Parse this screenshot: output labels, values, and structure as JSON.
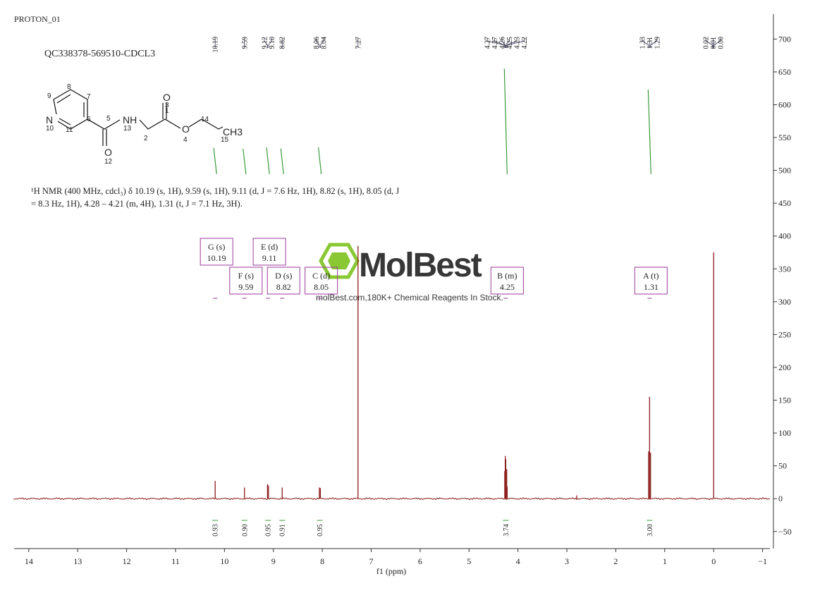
{
  "chart_data": {
    "type": "nmr",
    "title": "PROTON_01",
    "sample": "QC338378-569510-CDCL3",
    "description": [
      "¹H NMR (400 MHz, cdcl₃) δ 10.19 (s, 1H), 9.59 (s, 1H), 9.11 (d, J = 7.6 Hz, 1H), 8.82 (s, 1H), 8.05 (d, J",
      "= 8.3 Hz, 1H), 4.28 – 4.21 (m, 4H), 1.31 (t, J = 7.1 Hz, 3H)."
    ],
    "structure": {
      "atoms": [
        "N",
        "NH",
        "O",
        "O",
        "O",
        "CH3"
      ],
      "numbers": [
        "1",
        "2",
        "3",
        "4",
        "5",
        "6",
        "7",
        "8",
        "9",
        "10",
        "11",
        "12",
        "13",
        "14",
        "15"
      ]
    },
    "watermark": {
      "brand": "MolBest",
      "tagline": "molBest.com,180K+ Chemical Reagents In Stock."
    },
    "xlabel": "f1 (ppm)",
    "xlim": [
      14.3,
      -1.15
    ],
    "xticks": [
      14,
      13,
      12,
      11,
      10,
      9,
      8,
      7,
      6,
      5,
      4,
      3,
      2,
      1,
      0,
      {
        "value": -1,
        "label": "−1"
      }
    ],
    "ylim": [
      -76,
      738
    ],
    "yticks": [
      {
        "value": -50,
        "label": "−50"
      },
      0,
      50,
      100,
      150,
      200,
      250,
      300,
      350,
      400,
      450,
      500,
      550,
      600,
      650,
      700
    ],
    "color": "#8b1a1a",
    "x": [
      10.19,
      9.59,
      9.12,
      9.1,
      8.82,
      8.06,
      8.04,
      7.27,
      4.27,
      4.26,
      4.25,
      4.23,
      4.22,
      2.8,
      1.33,
      1.31,
      1.29,
      0
    ],
    "values": [
      27,
      17,
      22,
      20,
      17,
      17,
      16,
      385,
      42,
      65,
      60,
      45,
      18,
      5,
      72,
      155,
      70,
      375
    ],
    "peak_labels": [
      10.19,
      9.59,
      9.12,
      {
        "value": 9.1,
        "label": "9.10"
      },
      8.82,
      8.06,
      8.04,
      7.27,
      4.27,
      4.27,
      4.26,
      4.25,
      4.23,
      4.22,
      1.33,
      1.31,
      1.29,
      0.02,
      0.01,
      {
        "value": 0,
        "label": "0.00"
      }
    ],
    "multiplets": [
      {
        "label": "G (s)",
        "shift": 10.19,
        "integral": 0.93
      },
      {
        "label": "F (s)",
        "shift": 9.59,
        "integral": {
          "value": 0.9,
          "label": "0.90"
        }
      },
      {
        "label": "E (d)",
        "shift": 9.11,
        "integral": 0.95
      },
      {
        "label": "D (s)",
        "shift": 8.82,
        "integral": 0.91
      },
      {
        "label": "C (d)",
        "shift": 8.05,
        "integral": 0.95
      },
      {
        "label": "B (m)",
        "shift": 4.25,
        "integral": 3.74
      },
      {
        "label": "A (t)",
        "shift": 1.31,
        "integral": {
          "value": 3,
          "label": "3.00"
        }
      }
    ]
  }
}
